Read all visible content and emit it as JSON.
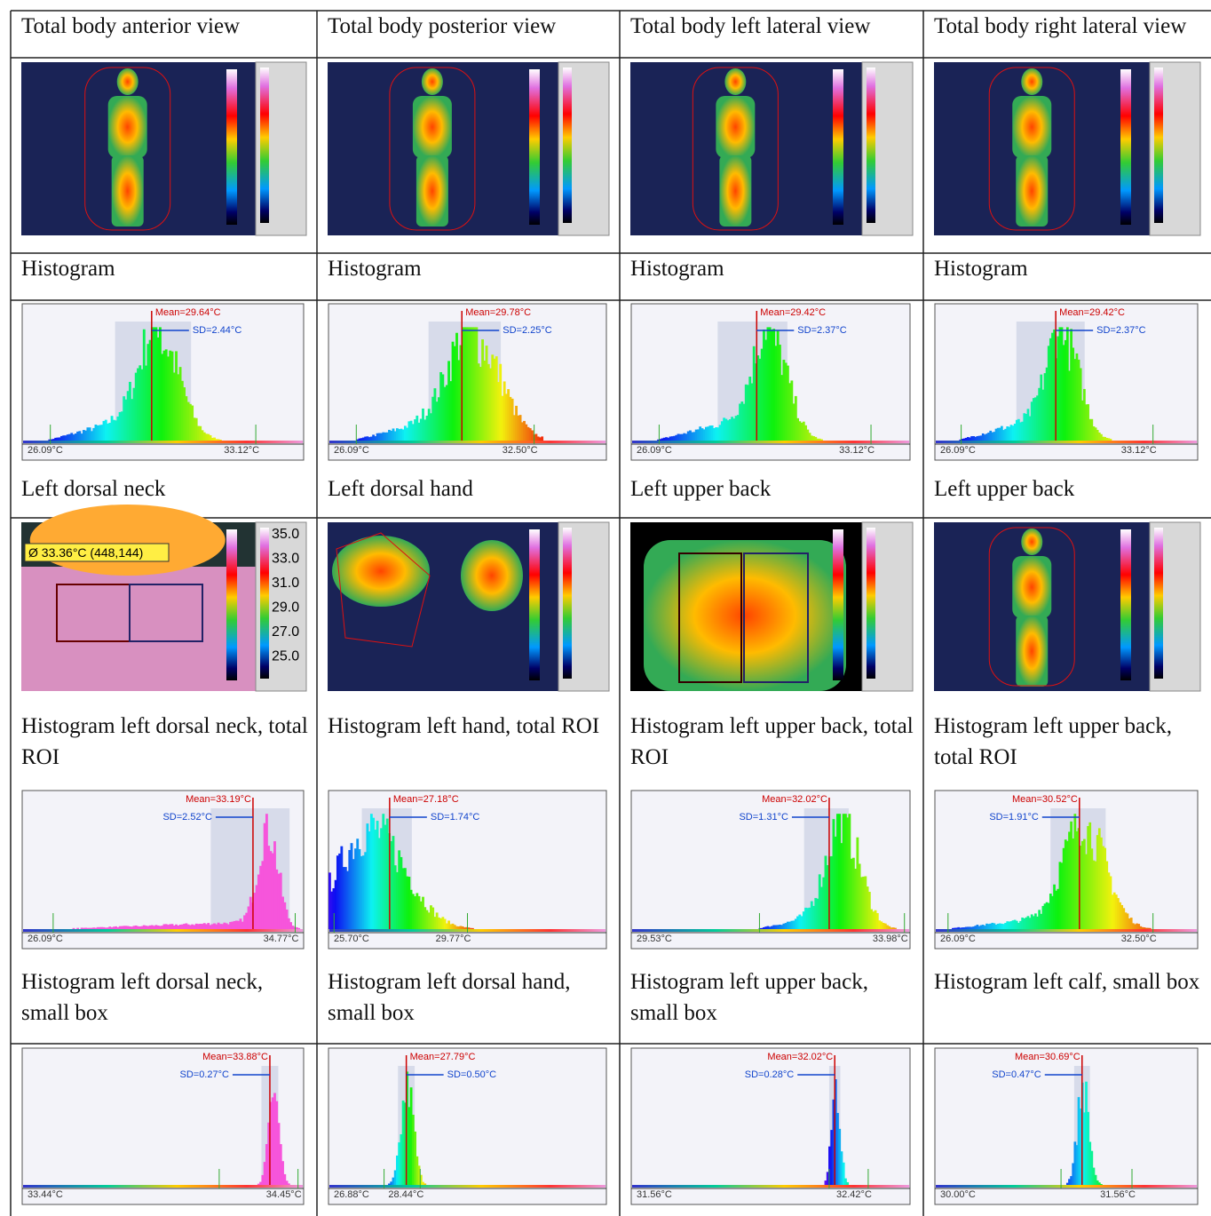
{
  "columns": [
    {
      "title": "Total body anterior view",
      "overview": {
        "label": "Histogram",
        "mean": "Mean=29.64°C",
        "sd": "SD=2.44°C",
        "min": "26.09°C",
        "max": "33.12°C"
      },
      "region": "Left dorsal neck",
      "image_annotation": "Ø 33.36°C (448,144)",
      "image_scale": [
        "35.0",
        "33.0",
        "31.0",
        "29.0",
        "27.0",
        "25.0"
      ],
      "roi_label": "Histogram left dorsal neck, total ROI",
      "roi": {
        "mean": "Mean=33.19°C",
        "sd": "SD=2.52°C",
        "min": "26.09°C",
        "max": "34.77°C"
      },
      "box_label": "Histogram left dorsal neck, small box",
      "box": {
        "mean": "Mean=33.88°C",
        "sd": "SD=0.27°C",
        "min": "33.44°C",
        "max": "34.45°C"
      }
    },
    {
      "title": "Total body posterior view",
      "overview": {
        "label": "Histogram",
        "mean": "Mean=29.78°C",
        "sd": "SD=2.25°C",
        "min": "26.09°C",
        "max": "32.50°C"
      },
      "region": "Left dorsal hand",
      "roi_label": "Histogram left hand, total ROI",
      "roi": {
        "mean": "Mean=27.18°C",
        "sd": "SD=1.74°C",
        "min": "25.70°C",
        "max": "29.77°C"
      },
      "box_label": "Histogram left dorsal hand, small box",
      "box": {
        "mean": "Mean=27.79°C",
        "sd": "SD=0.50°C",
        "min": "26.88°C",
        "max": "28.44°C"
      }
    },
    {
      "title": "Total body left lateral view",
      "overview": {
        "label": "Histogram",
        "mean": "Mean=29.42°C",
        "sd": "SD=2.37°C",
        "min": "26.09°C",
        "max": "33.12°C"
      },
      "region": "Left upper back",
      "roi_label": "Histogram left upper back, total ROI",
      "roi": {
        "mean": "Mean=32.02°C",
        "sd": "SD=1.31°C",
        "min": "29.53°C",
        "max": "33.98°C"
      },
      "box_label": "Histogram left upper back, small box",
      "box": {
        "mean": "Mean=32.02°C",
        "sd": "SD=0.28°C",
        "min": "31.56°C",
        "max": "32.42°C"
      }
    },
    {
      "title": "Total body right lateral view",
      "overview": {
        "label": "Histogram",
        "mean": "Mean=29.42°C",
        "sd": "SD=2.37°C",
        "min": "26.09°C",
        "max": "33.12°C"
      },
      "region": "Left upper back",
      "roi_label": "Histogram left upper back, total ROI",
      "roi": {
        "mean": "Mean=30.52°C",
        "sd": "SD=1.91°C",
        "min": "26.09°C",
        "max": "32.50°C"
      },
      "box_label": "Histogram left calf, small box",
      "box": {
        "mean": "Mean=30.69°C",
        "sd": "SD=0.47°C",
        "min": "30.00°C",
        "max": "31.56°C"
      }
    }
  ]
}
